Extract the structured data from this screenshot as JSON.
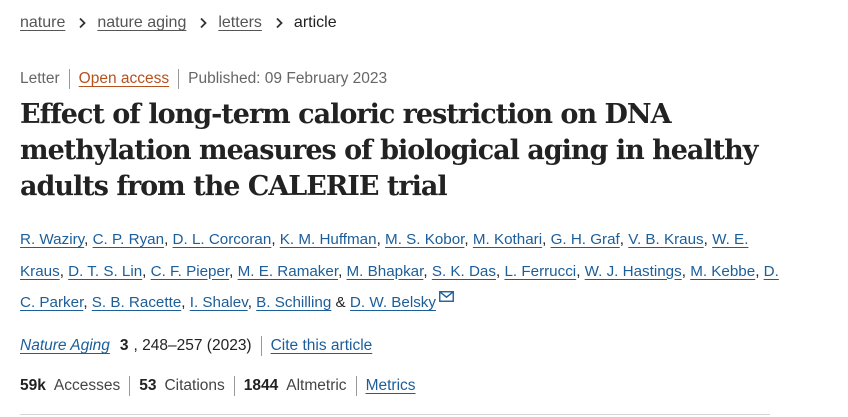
{
  "breadcrumb": {
    "items": [
      "nature",
      "nature aging",
      "letters"
    ],
    "current": "article"
  },
  "meta": {
    "type": "Letter",
    "open_access": "Open access",
    "published": "Published: 09 February 2023"
  },
  "title": "Effect of long-term caloric restriction on DNA methylation measures of biological aging in healthy adults from the CALERIE trial",
  "authors": [
    "R. Waziry",
    "C. P. Ryan",
    "D. L. Corcoran",
    "K. M. Huffman",
    "M. S. Kobor",
    "M. Kothari",
    "G. H. Graf",
    "V. B. Kraus",
    "W. E. Kraus",
    "D. T. S. Lin",
    "C. F. Pieper",
    "M. E. Ramaker",
    "M. Bhapkar",
    "S. K. Das",
    "L. Ferrucci",
    "W. J. Hastings",
    "M. Kebbe",
    "D. C. Parker",
    "S. B. Racette",
    "I. Shalev",
    "B. Schilling",
    "D. W. Belsky"
  ],
  "author_separators": {
    "comma": ",",
    "ampersand": "&"
  },
  "citation": {
    "journal": "Nature Aging",
    "volume": "3",
    "pages": ", 248–257 (2023)",
    "cite_label": "Cite this article"
  },
  "metrics": {
    "accesses_value": "59k",
    "accesses_label": "Accesses",
    "citations_value": "53",
    "citations_label": "Citations",
    "altmetric_value": "1844",
    "altmetric_label": "Altmetric",
    "metrics_link": "Metrics"
  },
  "icons": {
    "breadcrumb_separator": "chevron-right-icon",
    "corresponding_author": "mail-icon"
  },
  "colors": {
    "link": "#1c5e9a",
    "open_access": "#b6521e",
    "text": "#222222"
  }
}
